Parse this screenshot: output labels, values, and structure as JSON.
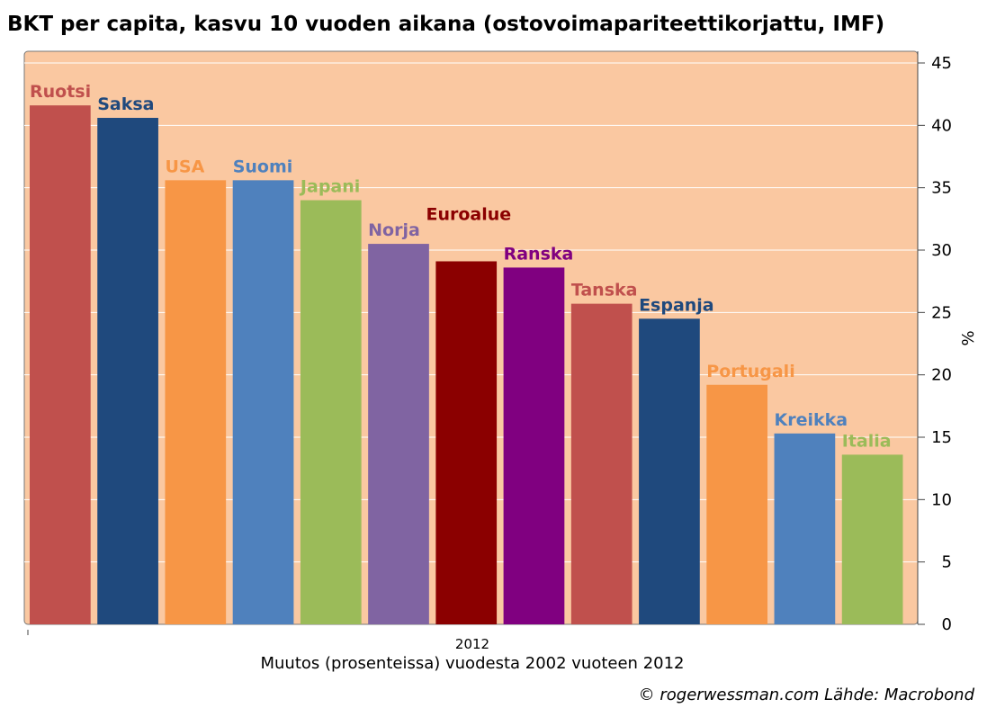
{
  "chart_data": {
    "type": "bar",
    "title": "BKT per capita, kasvu 10 vuoden aikana (ostovoimapariteettikorjattu, IMF)",
    "categories": [
      "Ruotsi",
      "Saksa",
      "USA",
      "Suomi",
      "Japani",
      "Norja",
      "Euroalue",
      "Ranska",
      "Tanska",
      "Espanja",
      "Portugali",
      "Kreikka",
      "Italia"
    ],
    "values": [
      41.6,
      40.6,
      35.6,
      35.6,
      34.0,
      30.5,
      29.1,
      28.6,
      25.7,
      24.5,
      19.2,
      15.3,
      13.6
    ],
    "colors": [
      "#c0504d",
      "#1f497d",
      "#f79646",
      "#4f81bd",
      "#9bbb59",
      "#8064a2",
      "#8b0000",
      "#800080",
      "#c0504d",
      "#1f497d",
      "#f79646",
      "#4f81bd",
      "#9bbb59"
    ],
    "label_colors": [
      "#c0504d",
      "#1f497d",
      "#f79646",
      "#4f81bd",
      "#9bbb59",
      "#8064a2",
      "#8b0000",
      "#800080",
      "#c0504d",
      "#1f497d",
      "#f79646",
      "#4f81bd",
      "#9bbb59"
    ],
    "x_tick": "2012",
    "xlabel": "Muutos (prosenteissa) vuodesta 2002 vuoteen 2012",
    "ylabel": "%",
    "ylim": [
      0,
      45
    ],
    "yticks": [
      0,
      5,
      10,
      15,
      20,
      25,
      30,
      35,
      40,
      45
    ],
    "y_axis_side": "right",
    "grid": true,
    "legend": "none",
    "plot_background": "#fac8a1"
  },
  "source": "© rogerwessman.com Lähde: Macrobond"
}
